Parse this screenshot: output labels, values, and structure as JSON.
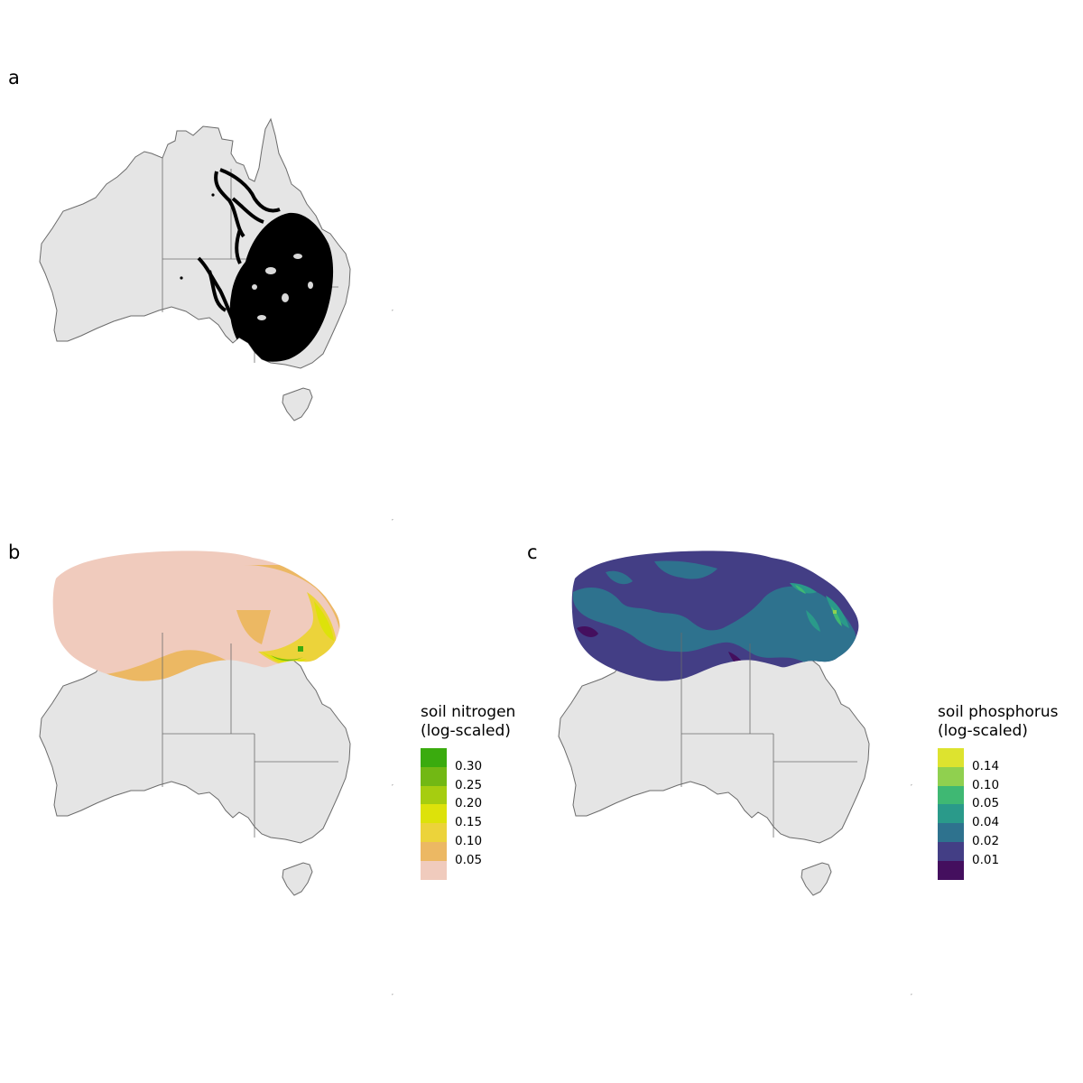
{
  "figure": {
    "panels": [
      {
        "id": "a",
        "label": "a",
        "layer": "occurrence records"
      },
      {
        "id": "b",
        "label": "b",
        "layer": "soil nitrogen",
        "legend": {
          "title_line1": "soil nitrogen",
          "title_line2": "(log-scaled)",
          "breaks": [
            "0.30",
            "0.25",
            "0.20",
            "0.15",
            "0.10",
            "0.05"
          ],
          "colors": [
            "#3aab0e",
            "#72b814",
            "#a6cd10",
            "#dde20a",
            "#ecd33a",
            "#ecb863",
            "#f0cbbd"
          ]
        }
      },
      {
        "id": "c",
        "label": "c",
        "layer": "soil phosphorus",
        "legend": {
          "title_line1": "soil phosphorus",
          "title_line2": "(log-scaled)",
          "breaks": [
            "0.14",
            "0.10",
            "0.05",
            "0.04",
            "0.02",
            "0.01"
          ],
          "colors": [
            "#dde32f",
            "#90d04f",
            "#3fb873",
            "#2a9a8a",
            "#2e728e",
            "#433e85",
            "#440f5e"
          ]
        }
      }
    ],
    "colors": {
      "land": "#e5e5e5",
      "coast": "#6b6b6b",
      "points": "#000000"
    }
  }
}
